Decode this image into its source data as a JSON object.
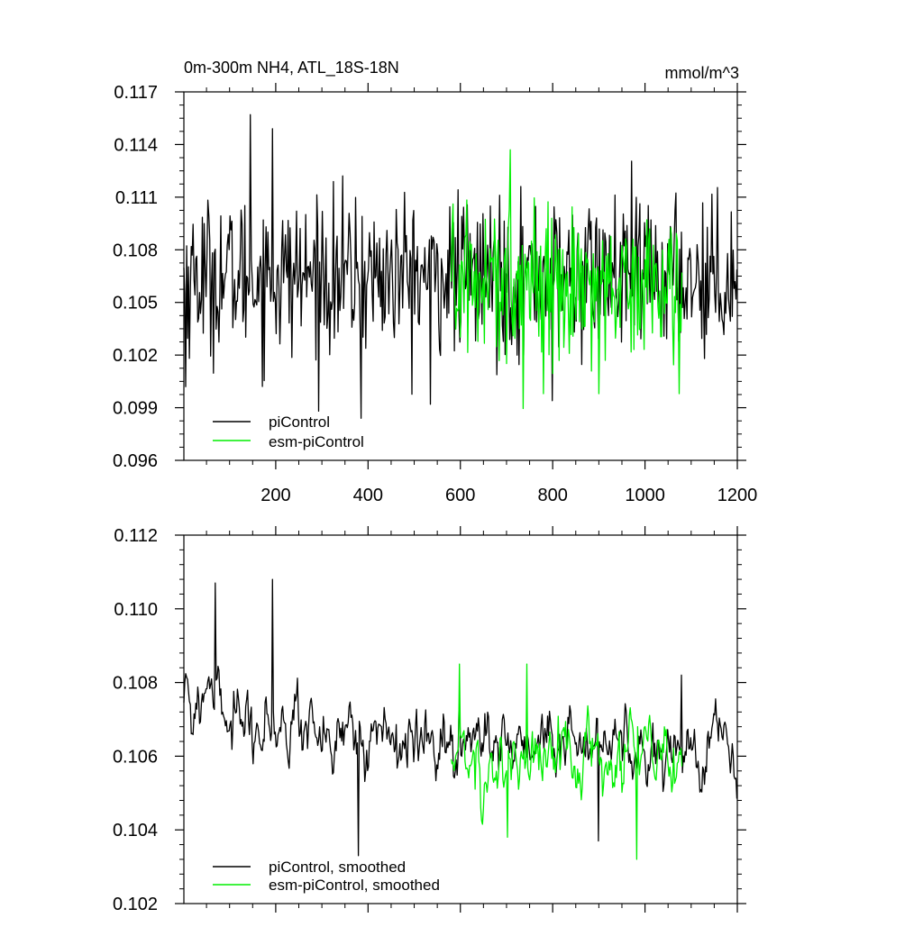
{
  "header": {
    "title": "0m-300m NH4, ATL_18S-18N",
    "units": "mmol/m^3"
  },
  "colors": {
    "piControl": "#000000",
    "esm_piControl": "#00ee00"
  },
  "chart_data": [
    {
      "type": "line",
      "title": "0m-300m NH4, ATL_18S-18N",
      "units": "mmol/m^3",
      "xlabel": "",
      "ylabel": "",
      "xlim": [
        1,
        1200
      ],
      "ylim": [
        0.096,
        0.117
      ],
      "xticks": [
        200,
        400,
        600,
        800,
        1000,
        1200
      ],
      "xtick_labels": [
        "200",
        "400",
        "600",
        "800",
        "1000",
        "1200"
      ],
      "yticks": [
        0.096,
        0.099,
        0.102,
        0.105,
        0.108,
        0.111,
        0.114,
        0.117
      ],
      "ytick_labels": [
        "0.096",
        "0.099",
        "0.102",
        "0.105",
        "0.108",
        "0.111",
        "0.114",
        "0.117"
      ],
      "grid": false,
      "legend_position": "bottom-left",
      "series": [
        {
          "name": "piControl",
          "color": "#000000",
          "x_range": [
            1,
            1200
          ],
          "mean": 0.1065,
          "spread": 0.0022,
          "extremes": [
            [
              5,
              0.1002
            ],
            [
              145,
              0.1157
            ],
            [
              193,
              0.1149
            ],
            [
              385,
              0.0984
            ],
            [
              535,
              0.0992
            ],
            [
              800,
              0.0994
            ]
          ]
        },
        {
          "name": "esm-piControl",
          "color": "#00ee00",
          "x_range": [
            580,
            1080
          ],
          "mean": 0.1062,
          "spread": 0.0022,
          "extremes": [
            [
              709,
              0.1137
            ],
            [
              780,
              0.0998
            ],
            [
              900,
              0.0998
            ],
            [
              1075,
              0.0998
            ]
          ]
        }
      ]
    },
    {
      "type": "line",
      "title": "",
      "xlabel": "",
      "ylabel": "",
      "xlim": [
        1,
        1200
      ],
      "ylim": [
        0.102,
        0.112
      ],
      "xticks": [
        200,
        400,
        600,
        800,
        1000,
        1200
      ],
      "yticks": [
        0.102,
        0.104,
        0.106,
        0.108,
        0.11,
        0.112
      ],
      "ytick_labels": [
        "0.102",
        "0.104",
        "0.106",
        "0.108",
        "0.110",
        "0.112"
      ],
      "grid": false,
      "legend_position": "bottom-left",
      "series": [
        {
          "name": "piControl, smoothed",
          "color": "#000000",
          "x_range": [
            1,
            1200
          ],
          "mean": 0.1063,
          "spread": 0.0006,
          "extremes": [
            [
              70,
              0.1107
            ],
            [
              193,
              0.1108
            ],
            [
              380,
              0.1033
            ],
            [
              900,
              0.1037
            ],
            [
              1080,
              0.1082
            ]
          ]
        },
        {
          "name": "esm-piControl, smoothed",
          "color": "#00ee00",
          "x_range": [
            580,
            1080
          ],
          "mean": 0.1058,
          "spread": 0.0007,
          "extremes": [
            [
              598,
              0.1085
            ],
            [
              702,
              0.1038
            ],
            [
              745,
              0.1085
            ],
            [
              983,
              0.1032
            ]
          ]
        }
      ]
    }
  ]
}
